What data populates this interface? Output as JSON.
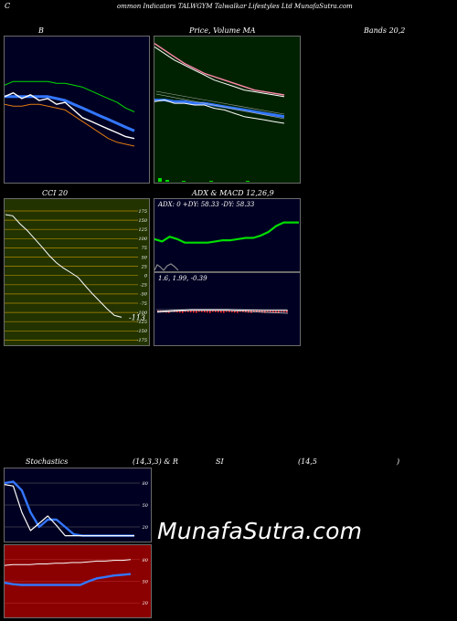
{
  "header": {
    "c_letter": "C",
    "title": "ommon  Indicators TALWGYM Talwalkar Lifestyles Ltd MunafaSutra.com"
  },
  "labels": {
    "b": "B",
    "price_ma": "Price,  Volume  MA",
    "bands": "Bands 20,2",
    "cci": "CCI 20",
    "adx_macd": "ADX  & MACD 12,26,9",
    "stoch_a": "Stochastics",
    "stoch_b": "(14,3,3) & R",
    "stoch_c": "SI",
    "stoch_d": "(14,5",
    "stoch_e": ")"
  },
  "adx": {
    "text": "ADX: 0   +DY: 58.33 -DY: 58.33"
  },
  "macd": {
    "text": "1.6,  1.99,  -0.39"
  },
  "cci": {
    "value_label": "-113",
    "ticks": [
      "175",
      "150",
      "125",
      "100",
      "75",
      "50",
      "25",
      "0",
      "-25",
      "-50",
      "-75",
      "-100",
      "-125",
      "-150",
      "-175"
    ]
  },
  "stoch_ticks": [
    "80",
    "50",
    "20"
  ],
  "rsi_ticks": [
    "80",
    "50",
    "20"
  ],
  "watermark": "MunafaSutra.com",
  "colors": {
    "panel_bg": "#000022",
    "price_bg": "#002200",
    "cci_bg": "#223300",
    "rsi_bg": "#8b0000",
    "green": "#00dd00",
    "blue": "#3377ff",
    "white": "#ffffff",
    "orange": "#e07a10",
    "pink": "#ff88aa"
  },
  "chart_data": [
    {
      "type": "line",
      "panel": "bollinger-bands",
      "series": [
        {
          "color": "green",
          "values": [
            74,
            76,
            76,
            76,
            76,
            76,
            75,
            75,
            74,
            73,
            71,
            69,
            67,
            65,
            62,
            60
          ]
        },
        {
          "color": "blue",
          "values": [
            68,
            68,
            68,
            68,
            68,
            68,
            67,
            66,
            64,
            62,
            60,
            58,
            56,
            54,
            52,
            50
          ]
        },
        {
          "color": "white",
          "values": [
            68,
            70,
            67,
            69,
            66,
            67,
            64,
            65,
            61,
            57,
            55,
            53,
            51,
            49,
            47,
            46
          ]
        },
        {
          "color": "orange",
          "values": [
            64,
            63,
            63,
            64,
            64,
            63,
            62,
            61,
            58,
            55,
            52,
            49,
            46,
            44,
            43,
            42
          ]
        }
      ]
    },
    {
      "type": "line",
      "panel": "price-volume-ma",
      "series": [
        {
          "color": "pink",
          "values": [
            100,
            96,
            92,
            88,
            85,
            82,
            80,
            78,
            76,
            74,
            72,
            71,
            70,
            69
          ]
        },
        {
          "color": "white",
          "values": [
            98,
            94,
            90,
            87,
            84,
            81,
            78,
            76,
            74,
            72,
            71,
            70,
            69,
            68
          ]
        },
        {
          "color": "blue",
          "values": [
            66,
            66,
            65,
            65,
            64,
            64,
            63,
            62,
            61,
            60,
            59,
            58,
            57,
            56
          ]
        },
        {
          "color": "white",
          "values": [
            65,
            66,
            64,
            64,
            63,
            63,
            61,
            60,
            58,
            56,
            55,
            54,
            53,
            52
          ]
        }
      ]
    },
    {
      "type": "line",
      "panel": "cci",
      "ylim": [
        -175,
        175
      ],
      "series": [
        {
          "color": "white",
          "values": [
            165,
            162,
            140,
            122,
            100,
            78,
            55,
            35,
            20,
            8,
            -5,
            -28,
            -50,
            -70,
            -90,
            -108,
            -113
          ]
        }
      ]
    },
    {
      "type": "line",
      "panel": "adx",
      "series": [
        {
          "color": "green",
          "values": [
            24,
            22,
            26,
            24,
            21,
            21,
            21,
            21,
            22,
            23,
            23,
            24,
            25,
            25,
            27,
            30,
            35,
            38,
            38,
            38
          ]
        }
      ]
    },
    {
      "type": "line",
      "panel": "stochastics",
      "ylim": [
        0,
        100
      ],
      "series": [
        {
          "color": "blue",
          "values": [
            80,
            82,
            70,
            40,
            20,
            30,
            30,
            20,
            10,
            8,
            8,
            8,
            8,
            8,
            8,
            8
          ]
        },
        {
          "color": "white",
          "values": [
            78,
            76,
            40,
            15,
            25,
            35,
            22,
            8,
            8,
            8,
            8,
            8,
            8,
            8,
            8,
            8
          ]
        }
      ]
    },
    {
      "type": "line",
      "panel": "rsi",
      "ylim": [
        0,
        100
      ],
      "series": [
        {
          "color": "white",
          "values": [
            72,
            73,
            73,
            73,
            74,
            74,
            75,
            75,
            76,
            76,
            77,
            78,
            78,
            79,
            79,
            80
          ]
        },
        {
          "color": "blue",
          "values": [
            48,
            46,
            45,
            45,
            45,
            45,
            45,
            45,
            45,
            45,
            50,
            54,
            56,
            58,
            59,
            60
          ]
        }
      ]
    }
  ]
}
